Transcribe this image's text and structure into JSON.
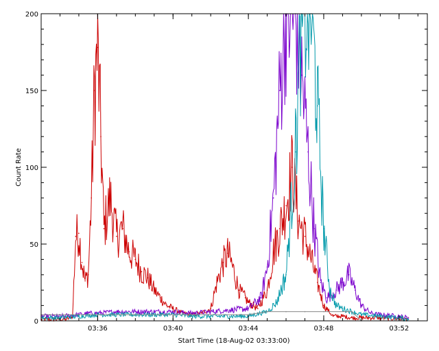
{
  "chart_data": {
    "type": "line",
    "title": "",
    "xlabel": "Start Time (18-Aug-02 03:33:00)",
    "ylabel": "Count Rate",
    "x_unit": "time (HH:MM)",
    "xlim": [
      "03:33:00",
      "03:53:30"
    ],
    "ylim": [
      0,
      200
    ],
    "x_tick_labels": [
      "03:36",
      "03:40",
      "03:44",
      "03:48",
      "03:52"
    ],
    "y_tick_labels": [
      "0",
      "50",
      "100",
      "150",
      "200"
    ],
    "grid": false,
    "legend": "none",
    "series": [
      {
        "color": "#cc0000",
        "style": "thin-then-thick",
        "points": [
          [
            "03:33:00",
            1
          ],
          [
            "03:34:20",
            1
          ],
          [
            "03:34:40",
            3
          ],
          [
            "03:34:50",
            55
          ],
          [
            "03:35:00",
            57
          ],
          [
            "03:35:10",
            38
          ],
          [
            "03:35:20",
            26
          ],
          [
            "03:35:30",
            30
          ],
          [
            "03:35:40",
            80
          ],
          [
            "03:35:50",
            150
          ],
          [
            "03:36:00",
            178
          ],
          [
            "03:36:10",
            120
          ],
          [
            "03:36:20",
            60
          ],
          [
            "03:36:40",
            80
          ],
          [
            "03:37:00",
            55
          ],
          [
            "03:37:20",
            60
          ],
          [
            "03:37:40",
            45
          ],
          [
            "03:38:00",
            40
          ],
          [
            "03:38:20",
            32
          ],
          [
            "03:38:40",
            28
          ],
          [
            "03:39:00",
            20
          ],
          [
            "03:39:20",
            15
          ],
          [
            "03:39:40",
            10
          ],
          [
            "03:40:00",
            8
          ],
          [
            "03:40:30",
            5
          ],
          [
            "03:41:00",
            4
          ],
          [
            "03:41:30",
            5
          ],
          [
            "03:42:00",
            8
          ],
          [
            "03:42:20",
            25
          ],
          [
            "03:42:40",
            38
          ],
          [
            "03:42:55",
            44
          ],
          [
            "03:43:10",
            35
          ],
          [
            "03:43:30",
            20
          ],
          [
            "03:43:50",
            15
          ],
          [
            "03:44:00",
            12
          ],
          [
            "03:44:30",
            8
          ],
          [
            "03:45:00",
            20
          ],
          [
            "03:45:20",
            45
          ],
          [
            "03:45:40",
            60
          ],
          [
            "03:46:00",
            75
          ],
          [
            "03:46:20",
            100
          ],
          [
            "03:46:40",
            65
          ],
          [
            "03:47:00",
            55
          ],
          [
            "03:47:20",
            40
          ],
          [
            "03:47:40",
            25
          ],
          [
            "03:48:00",
            10
          ],
          [
            "03:48:30",
            3
          ],
          [
            "03:49:00",
            3
          ],
          [
            "03:49:30",
            2
          ],
          [
            "03:50:00",
            2
          ],
          [
            "03:51:00",
            2
          ],
          [
            "03:52:30",
            1
          ]
        ]
      },
      {
        "color": "#7a00cc",
        "style": "thin-then-thick",
        "points": [
          [
            "03:33:00",
            3
          ],
          [
            "03:34:00",
            3
          ],
          [
            "03:35:00",
            4
          ],
          [
            "03:35:30",
            5
          ],
          [
            "03:36:00",
            5
          ],
          [
            "03:37:00",
            6
          ],
          [
            "03:38:00",
            6
          ],
          [
            "03:39:00",
            6
          ],
          [
            "03:40:00",
            6
          ],
          [
            "03:41:00",
            5
          ],
          [
            "03:42:00",
            6
          ],
          [
            "03:43:00",
            7
          ],
          [
            "03:44:00",
            8
          ],
          [
            "03:44:40",
            15
          ],
          [
            "03:45:00",
            35
          ],
          [
            "03:45:20",
            80
          ],
          [
            "03:45:40",
            150
          ],
          [
            "03:46:00",
            200
          ],
          [
            "03:46:30",
            200
          ],
          [
            "03:46:50",
            160
          ],
          [
            "03:47:10",
            110
          ],
          [
            "03:47:30",
            60
          ],
          [
            "03:47:50",
            25
          ],
          [
            "03:48:10",
            15
          ],
          [
            "03:48:40",
            20
          ],
          [
            "03:49:00",
            25
          ],
          [
            "03:49:20",
            30
          ],
          [
            "03:49:40",
            20
          ],
          [
            "03:50:00",
            10
          ],
          [
            "03:50:30",
            5
          ],
          [
            "03:51:00",
            4
          ],
          [
            "03:52:00",
            3
          ],
          [
            "03:52:30",
            2
          ]
        ]
      },
      {
        "color": "#0099aa",
        "style": "thin-then-thick",
        "points": [
          [
            "03:33:00",
            2
          ],
          [
            "03:34:00",
            2
          ],
          [
            "03:35:00",
            3
          ],
          [
            "03:36:00",
            4
          ],
          [
            "03:37:00",
            4
          ],
          [
            "03:38:00",
            4
          ],
          [
            "03:39:00",
            4
          ],
          [
            "03:40:00",
            4
          ],
          [
            "03:41:00",
            3
          ],
          [
            "03:42:00",
            3
          ],
          [
            "03:43:00",
            3
          ],
          [
            "03:44:00",
            3
          ],
          [
            "03:45:00",
            6
          ],
          [
            "03:45:30",
            12
          ],
          [
            "03:46:00",
            30
          ],
          [
            "03:46:30",
            110
          ],
          [
            "03:46:50",
            200
          ],
          [
            "03:47:20",
            200
          ],
          [
            "03:47:40",
            140
          ],
          [
            "03:48:00",
            60
          ],
          [
            "03:48:20",
            20
          ],
          [
            "03:48:40",
            10
          ],
          [
            "03:49:00",
            8
          ],
          [
            "03:49:30",
            6
          ],
          [
            "03:50:00",
            4
          ],
          [
            "03:51:00",
            3
          ],
          [
            "03:52:00",
            2
          ],
          [
            "03:52:30",
            1
          ]
        ]
      },
      {
        "color": "#888888",
        "style": "thin",
        "points": [
          [
            "03:33:00",
            4
          ],
          [
            "03:35:00",
            4
          ],
          [
            "03:38:00",
            4
          ],
          [
            "03:41:00",
            4
          ],
          [
            "03:44:00",
            4
          ],
          [
            "03:45:00",
            6
          ],
          [
            "03:46:00",
            6
          ],
          [
            "03:47:00",
            6
          ],
          [
            "03:48:00",
            6
          ],
          [
            "03:49:30",
            6
          ],
          [
            "03:50:00",
            0
          ]
        ]
      }
    ]
  }
}
